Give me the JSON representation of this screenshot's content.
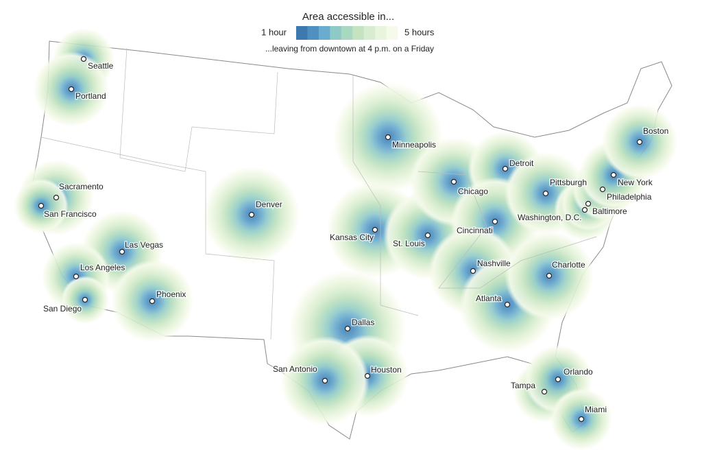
{
  "legend": {
    "title": "Area accessible in...",
    "min_label": "1 hour",
    "max_label": "5 hours",
    "colors": [
      "#3d79ae",
      "#4f90c0",
      "#6aacce",
      "#8ec9c8",
      "#a9d8c0",
      "#c3e3c1",
      "#d8edcf",
      "#e8f4dc",
      "#f5faeb"
    ]
  },
  "subtitle": "...leaving from downtown at 4 p.m. on a Friday",
  "cities": [
    {
      "name": "Seattle"
    },
    {
      "name": "Portland"
    },
    {
      "name": "Sacramento"
    },
    {
      "name": "San Francisco"
    },
    {
      "name": "Las Vegas"
    },
    {
      "name": "Los Angeles"
    },
    {
      "name": "San Diego"
    },
    {
      "name": "Phoenix"
    },
    {
      "name": "Denver"
    },
    {
      "name": "Minneapolis"
    },
    {
      "name": "Kansas City"
    },
    {
      "name": "St. Louis"
    },
    {
      "name": "Chicago"
    },
    {
      "name": "Detroit"
    },
    {
      "name": "Cincinnati"
    },
    {
      "name": "Nashville"
    },
    {
      "name": "Atlanta"
    },
    {
      "name": "Charlotte"
    },
    {
      "name": "Pittsburgh"
    },
    {
      "name": "Washington, D.C."
    },
    {
      "name": "Baltimore"
    },
    {
      "name": "Philadelphia"
    },
    {
      "name": "New York"
    },
    {
      "name": "Boston"
    },
    {
      "name": "Dallas"
    },
    {
      "name": "Houston"
    },
    {
      "name": "San Antonio"
    },
    {
      "name": "Tampa"
    },
    {
      "name": "Orlando"
    },
    {
      "name": "Miami"
    }
  ]
}
